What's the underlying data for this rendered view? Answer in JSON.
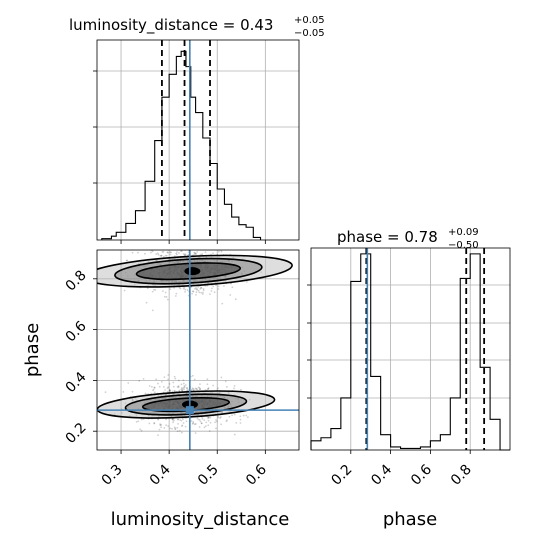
{
  "chart_data": [
    {
      "type": "histogram",
      "panel": "luminosity_distance marginal",
      "title_param": "luminosity_distance",
      "title_value": "0.43",
      "title_plus": "+0.05",
      "title_minus": "−0.05",
      "xlim": [
        0.25,
        0.67
      ],
      "x_ticks": [
        0.3,
        0.4,
        0.5,
        0.6
      ],
      "truth": 0.443,
      "quantiles": [
        0.385,
        0.432,
        0.485
      ],
      "bin_edges": [
        0.26,
        0.28,
        0.29,
        0.31,
        0.33,
        0.35,
        0.37,
        0.385,
        0.4,
        0.415,
        0.425,
        0.435,
        0.445,
        0.455,
        0.47,
        0.485,
        0.5,
        0.515,
        0.53,
        0.545,
        0.56,
        0.575,
        0.59
      ],
      "counts": [
        0.5,
        1.5,
        3,
        6.5,
        11.5,
        23,
        39,
        56,
        65,
        72,
        74,
        68,
        56,
        50,
        40,
        30,
        20,
        14,
        9,
        6,
        5,
        1
      ]
    },
    {
      "type": "histogram",
      "panel": "phase marginal",
      "title_param": "phase",
      "title_value": "0.78",
      "title_plus": "+0.09",
      "title_minus": "−0.50",
      "xlim": [
        0.0,
        1.0
      ],
      "x_ticks": [
        0.2,
        0.4,
        0.6,
        0.8
      ],
      "x_tick_labels": [
        "0.2",
        "0.4",
        "0.6",
        "0.8"
      ],
      "xlabel": "phase",
      "truth": 0.283,
      "quantiles": [
        0.278,
        0.78,
        0.87
      ],
      "bin_edges": [
        0.0,
        0.05,
        0.1,
        0.15,
        0.2,
        0.25,
        0.3,
        0.35,
        0.4,
        0.45,
        0.5,
        0.55,
        0.6,
        0.65,
        0.7,
        0.75,
        0.8,
        0.85,
        0.9,
        0.95,
        1.0
      ],
      "counts": [
        3,
        4,
        7,
        17,
        55,
        64,
        24,
        5,
        1,
        0.5,
        0.5,
        1,
        3,
        5,
        17,
        56,
        64,
        27,
        10,
        0
      ]
    },
    {
      "type": "scatter_density",
      "panel": "phase vs luminosity_distance",
      "xlabel": "luminosity_distance",
      "ylabel": "phase",
      "xlim": [
        0.25,
        0.67
      ],
      "ylim": [
        0.0,
        1.0
      ],
      "x_ticks": [
        0.3,
        0.4,
        0.5,
        0.6
      ],
      "x_tick_labels": [
        "0.3",
        "0.4",
        "0.5",
        "0.6"
      ],
      "y_ticks": [
        0.2,
        0.4,
        0.6,
        0.8
      ],
      "y_tick_labels": [
        "0.2",
        "0.4",
        "0.6",
        "0.8"
      ],
      "truth": [
        0.443,
        0.283
      ],
      "modes": [
        {
          "center": [
            0.44,
            0.83
          ],
          "contours": [
            [
              0.055,
              0.12
            ],
            [
              0.085,
              0.17
            ],
            [
              0.105,
              0.24
            ]
          ],
          "tilt": -0.4
        },
        {
          "center": [
            0.435,
            0.305
          ],
          "contours": [
            [
              0.045,
              0.1
            ],
            [
              0.07,
              0.14
            ],
            [
              0.09,
              0.205
            ]
          ],
          "tilt": -0.4
        }
      ],
      "grid": true
    }
  ]
}
